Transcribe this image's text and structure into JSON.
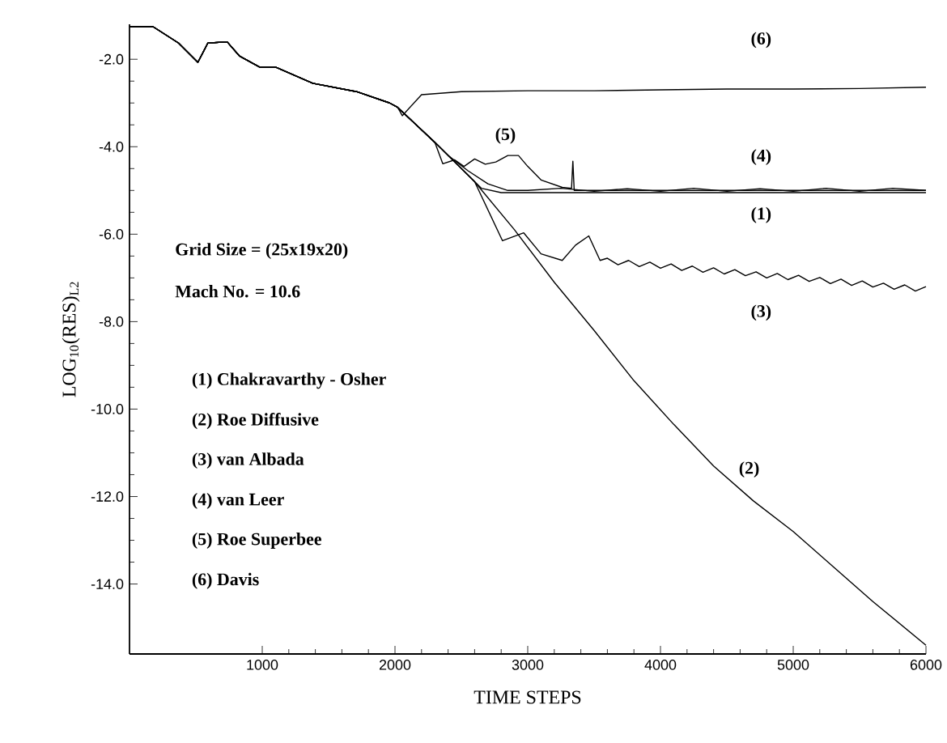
{
  "chart_data": {
    "type": "line",
    "xlabel": "TIME STEPS",
    "ylabel": "LOG$_{10}$(RES)$_{L2}$",
    "xlim": [
      0,
      6000
    ],
    "ylim": [
      -15.6,
      -1.2
    ],
    "xticks": [
      1000,
      2000,
      3000,
      4000,
      5000,
      6000
    ],
    "yticks": [
      {
        "value": -14,
        "label": "-14.0"
      },
      {
        "value": -12,
        "label": "-12.0"
      },
      {
        "value": -10,
        "label": "-10.0"
      },
      {
        "value": -8,
        "label": "-8.0"
      },
      {
        "value": -6,
        "label": "-6.0"
      },
      {
        "value": -4,
        "label": "-4.0"
      },
      {
        "value": -2,
        "label": "-2.0"
      }
    ],
    "annotations": [
      "Grid Size  =  (25x19x20)",
      "Mach No.  =  10.6",
      "(1)  Chakravarthy - Osher",
      "(2)  Roe  Diffusive",
      "(3)  van  Albada",
      "(4)  van  Leer",
      "(5)  Roe  Superbee",
      "(6)  Davis"
    ],
    "series": [
      {
        "name": "(1)",
        "color": "#000000",
        "x": [
          0,
          180,
          370,
          515,
          590,
          735,
          830,
          980,
          1100,
          1380,
          1710,
          1960,
          2020,
          2300,
          2500,
          2650,
          2800,
          4000,
          6000
        ],
        "values": [
          -1.26,
          -1.26,
          -1.63,
          -2.07,
          -1.63,
          -1.6,
          -1.93,
          -2.18,
          -2.18,
          -2.55,
          -2.74,
          -3.0,
          -3.1,
          -3.9,
          -4.5,
          -4.95,
          -5.05,
          -5.05,
          -5.05
        ]
      },
      {
        "name": "(2)",
        "color": "#000000",
        "x": [
          0,
          180,
          370,
          515,
          590,
          735,
          830,
          980,
          1100,
          1380,
          1710,
          1960,
          2020,
          2300,
          2600,
          2900,
          3200,
          3500,
          3800,
          4100,
          4400,
          4700,
          5000,
          5300,
          5600,
          6000
        ],
        "values": [
          -1.26,
          -1.26,
          -1.63,
          -2.07,
          -1.63,
          -1.6,
          -1.93,
          -2.18,
          -2.18,
          -2.55,
          -2.74,
          -3.0,
          -3.1,
          -3.9,
          -4.8,
          -5.9,
          -7.1,
          -8.2,
          -9.35,
          -10.35,
          -11.3,
          -12.1,
          -12.8,
          -13.6,
          -14.4,
          -15.4
        ]
      },
      {
        "name": "(3)",
        "color": "#000000",
        "x": [
          0,
          180,
          370,
          515,
          590,
          735,
          830,
          980,
          1100,
          1380,
          1710,
          1960,
          2020,
          2300,
          2600,
          2810,
          2970,
          3100,
          3260,
          3360,
          3460,
          3545,
          3600,
          3680,
          3760,
          3840,
          3920,
          4000,
          4080,
          4160,
          4240,
          4320,
          4400,
          4480,
          4560,
          4640,
          4720,
          4800,
          4880,
          4960,
          5040,
          5120,
          5200,
          5280,
          5360,
          5440,
          5520,
          5600,
          5680,
          5760,
          5840,
          5920,
          6000
        ],
        "values": [
          -1.26,
          -1.26,
          -1.63,
          -2.07,
          -1.63,
          -1.6,
          -1.93,
          -2.18,
          -2.18,
          -2.55,
          -2.74,
          -3.0,
          -3.1,
          -3.9,
          -4.8,
          -6.15,
          -5.97,
          -6.45,
          -6.6,
          -6.25,
          -6.04,
          -6.6,
          -6.55,
          -6.7,
          -6.6,
          -6.74,
          -6.64,
          -6.78,
          -6.68,
          -6.83,
          -6.73,
          -6.87,
          -6.77,
          -6.91,
          -6.81,
          -6.95,
          -6.86,
          -7.0,
          -6.9,
          -7.04,
          -6.94,
          -7.08,
          -6.99,
          -7.13,
          -7.03,
          -7.17,
          -7.07,
          -7.21,
          -7.12,
          -7.26,
          -7.16,
          -7.3,
          -7.2
        ]
      },
      {
        "name": "(4)",
        "color": "#000000",
        "x": [
          0,
          180,
          370,
          515,
          590,
          735,
          830,
          980,
          1100,
          1380,
          1710,
          1960,
          2020,
          2300,
          2400,
          2550,
          2700,
          2850,
          3000,
          3250,
          3500,
          3750,
          4000,
          4250,
          4500,
          4750,
          5000,
          5250,
          5500,
          5750,
          6000
        ],
        "values": [
          -1.26,
          -1.26,
          -1.63,
          -2.07,
          -1.63,
          -1.6,
          -1.93,
          -2.18,
          -2.18,
          -2.55,
          -2.74,
          -3.0,
          -3.1,
          -3.9,
          -4.2,
          -4.55,
          -4.85,
          -5.0,
          -5.0,
          -4.95,
          -5.02,
          -4.96,
          -5.02,
          -4.95,
          -5.02,
          -4.96,
          -5.02,
          -4.95,
          -5.02,
          -4.95,
          -5.0
        ]
      },
      {
        "name": "(5)",
        "color": "#000000",
        "x": [
          0,
          180,
          370,
          515,
          590,
          735,
          830,
          980,
          1100,
          1380,
          1710,
          1960,
          2020,
          2300,
          2360,
          2450,
          2520,
          2600,
          2680,
          2760,
          2850,
          2930,
          3000,
          3100,
          3260,
          3330,
          3340,
          3350,
          4000,
          5000,
          6000
        ],
        "values": [
          -1.26,
          -1.26,
          -1.63,
          -2.07,
          -1.63,
          -1.6,
          -1.93,
          -2.18,
          -2.18,
          -2.55,
          -2.74,
          -3.0,
          -3.1,
          -3.9,
          -4.39,
          -4.3,
          -4.45,
          -4.28,
          -4.4,
          -4.35,
          -4.2,
          -4.2,
          -4.45,
          -4.76,
          -4.93,
          -4.95,
          -4.33,
          -5.0,
          -5.0,
          -5.0,
          -5.0
        ]
      },
      {
        "name": "(6)",
        "color": "#000000",
        "x": [
          0,
          180,
          370,
          515,
          590,
          735,
          830,
          980,
          1100,
          1380,
          1710,
          1960,
          2020,
          2055,
          2200,
          2500,
          3000,
          3500,
          4000,
          4500,
          5000,
          5500,
          6000
        ],
        "values": [
          -1.26,
          -1.26,
          -1.63,
          -2.07,
          -1.63,
          -1.6,
          -1.93,
          -2.18,
          -2.18,
          -2.55,
          -2.74,
          -3.0,
          -3.1,
          -3.29,
          -2.81,
          -2.74,
          -2.72,
          -2.72,
          -2.7,
          -2.68,
          -2.68,
          -2.67,
          -2.64
        ]
      }
    ]
  }
}
